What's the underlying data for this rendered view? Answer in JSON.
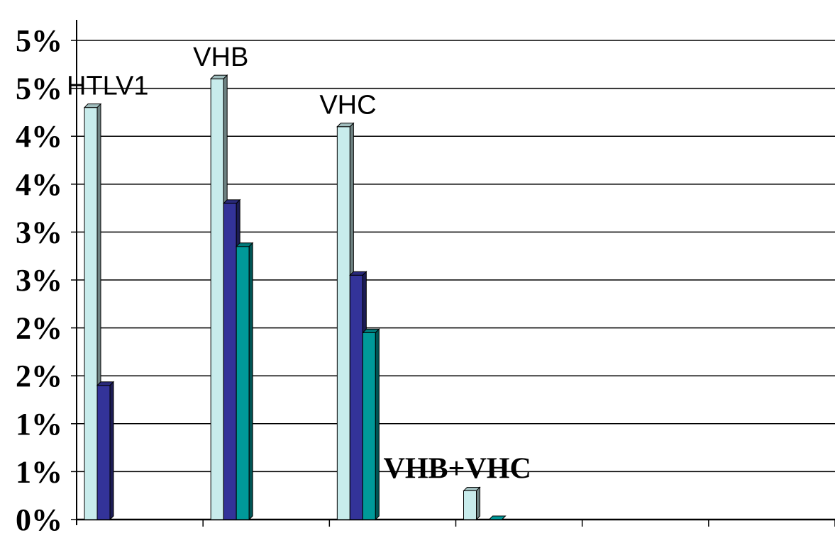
{
  "chart_data": {
    "type": "bar",
    "title": "",
    "xlabel": "",
    "ylabel": "",
    "ylim": [
      0,
      5.2
    ],
    "y_tick_values": [
      0,
      0.5,
      1,
      1.5,
      2,
      2.5,
      3,
      3.5,
      4,
      4.5,
      5
    ],
    "y_tick_labels": [
      "0%",
      "1%",
      "1%",
      "2%",
      "2%",
      "3%",
      "3%",
      "4%",
      "4%",
      "5%",
      "5%"
    ],
    "grid": true,
    "legend": "none",
    "categories": [
      "HTLV1",
      "VHB",
      "VHC",
      "VHB+VHC",
      "",
      ""
    ],
    "category_labels": [
      {
        "text": "HTLV1",
        "style": "sans"
      },
      {
        "text": "VHB",
        "style": "sans"
      },
      {
        "text": "VHC",
        "style": "sans"
      },
      {
        "text": "VHB+VHC",
        "style": "serif-bold"
      }
    ],
    "series": [
      {
        "values": [
          4.3,
          4.6,
          4.1,
          0.3,
          null,
          null
        ],
        "color": "#c8ecec"
      },
      {
        "values": [
          1.4,
          3.3,
          2.55,
          null,
          null,
          null
        ],
        "color": "#333399"
      },
      {
        "values": [
          null,
          2.85,
          1.95,
          0.0,
          null,
          null
        ],
        "color": "#009999"
      }
    ]
  }
}
